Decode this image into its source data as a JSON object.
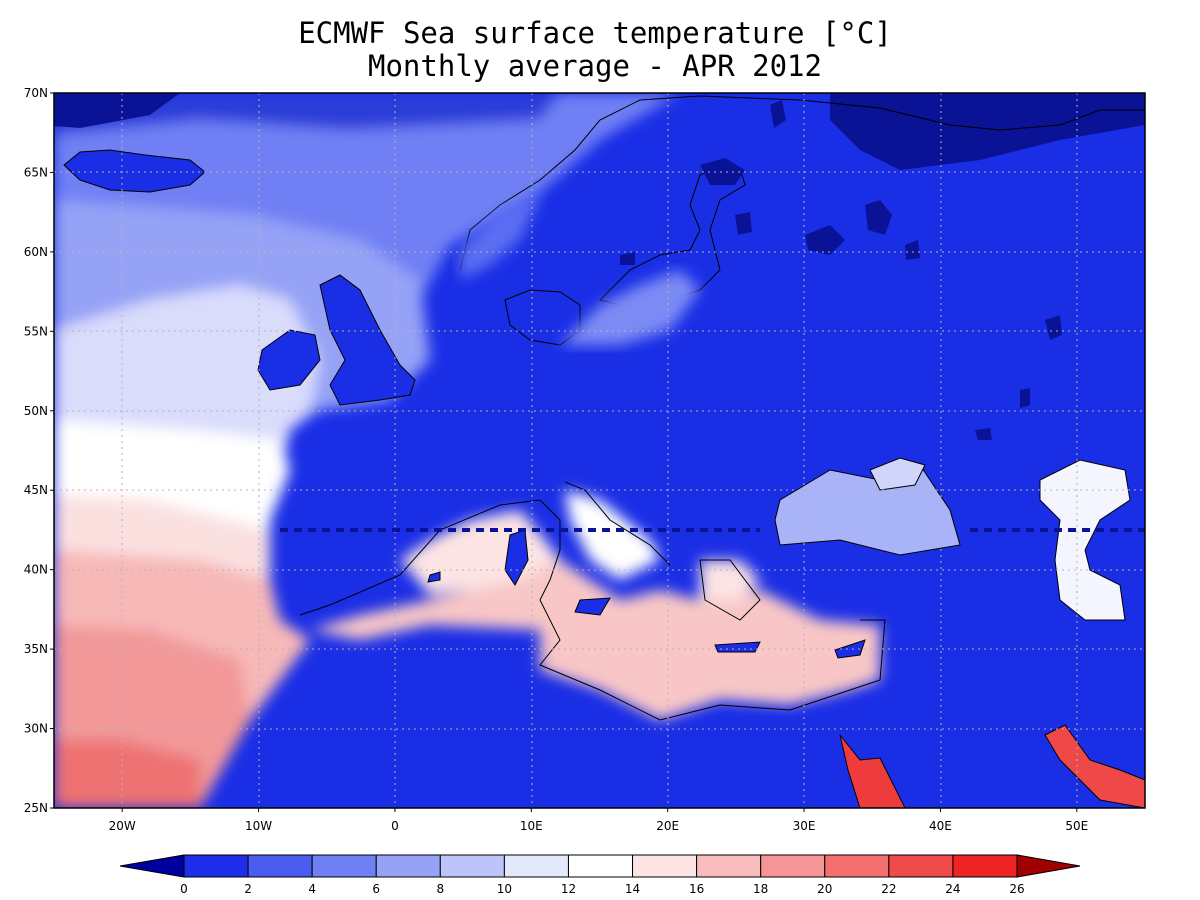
{
  "title": {
    "line1": "ECMWF Sea surface temperature [°C]",
    "line2": "Monthly average - APR 2012"
  },
  "map": {
    "lon_range": [
      -25,
      55
    ],
    "lat_range": [
      25,
      70
    ],
    "lat_ticks": [
      "25N",
      "30N",
      "35N",
      "40N",
      "45N",
      "50N",
      "55N",
      "60N",
      "65N",
      "70N"
    ],
    "lon_ticks": [
      "20W",
      "10W",
      "0",
      "10E",
      "20E",
      "30E",
      "40E",
      "50E"
    ],
    "grid": true,
    "land_color": "#1a2ee6",
    "coastline_color": "#000000"
  },
  "colorbar": {
    "labels": [
      "0",
      "2",
      "4",
      "6",
      "8",
      "10",
      "12",
      "14",
      "16",
      "18",
      "20",
      "22",
      "24",
      "26"
    ],
    "colors": [
      "#0000a0",
      "#1e2ee8",
      "#4a5cf0",
      "#6f80f4",
      "#95a2f6",
      "#bcc4f9",
      "#e4e8fd",
      "#ffffff",
      "#fde4e4",
      "#f9bcbc",
      "#f69595",
      "#f46f6f",
      "#f04a4a",
      "#ee2424",
      "#a00000"
    ]
  }
}
